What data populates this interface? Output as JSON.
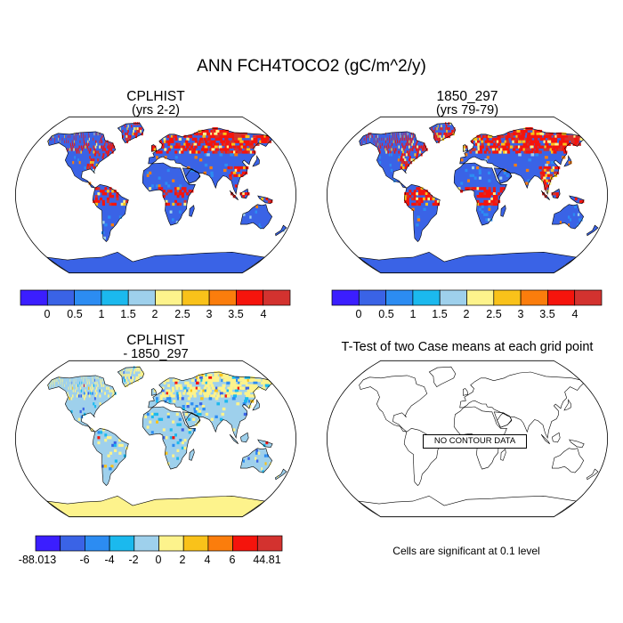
{
  "main_title": "ANN FCH4TOCO2 (gC/m^2/y)",
  "panels": {
    "case1": {
      "title": "CPLHIST",
      "subtitle": "(yrs 2-2)"
    },
    "case2": {
      "title": "1850_297",
      "subtitle": "(yrs 79-79)"
    },
    "diff": {
      "title": "CPLHIST",
      "subtitle": "- 1850_297"
    },
    "ttest": {
      "title": "T-Test of two Case means at each grid point",
      "nodata": "NO CONTOUR DATA",
      "note": "Cells are significant at 0.1 level"
    }
  },
  "colors": {
    "case_levels": [
      "#3b1eff",
      "#3a63e6",
      "#2c8cf2",
      "#1bb9ee",
      "#9ed0ec",
      "#fdf38c",
      "#f9c21a",
      "#fb7d0c",
      "#f5140c",
      "#d3322f"
    ],
    "diff_levels": [
      "#3b1eff",
      "#3a63e6",
      "#2c8cf2",
      "#1bb9ee",
      "#9ed0ec",
      "#fdf38c",
      "#f9c21a",
      "#fb7d0c",
      "#f5140c",
      "#d3322f"
    ]
  },
  "chart_data": [
    {
      "type": "heatmap",
      "title": "CPLHIST",
      "subtitle": "(yrs 2-2)",
      "colorbar_levels": [
        0,
        0.5,
        1,
        1.5,
        2,
        2.5,
        3,
        3.5,
        4
      ],
      "colorbar_labels": [
        "0",
        "0.5",
        "1",
        "1.5",
        "2",
        "2.5",
        "3",
        "3.5",
        "4"
      ]
    },
    {
      "type": "heatmap",
      "title": "1850_297",
      "subtitle": "(yrs 79-79)",
      "colorbar_levels": [
        0,
        0.5,
        1,
        1.5,
        2,
        2.5,
        3,
        3.5,
        4
      ],
      "colorbar_labels": [
        "0",
        "0.5",
        "1",
        "1.5",
        "2",
        "2.5",
        "3",
        "3.5",
        "4"
      ]
    },
    {
      "type": "heatmap",
      "title": "CPLHIST",
      "subtitle": "- 1850_297",
      "colorbar_levels": [
        -6,
        -4,
        -2,
        0,
        2,
        4,
        6
      ],
      "colorbar_min": -88.013,
      "colorbar_max": 44.81,
      "colorbar_labels": [
        "-88.013",
        "-6",
        "-4",
        "-2",
        "0",
        "2",
        "4",
        "6",
        "44.81"
      ]
    },
    {
      "type": "heatmap",
      "title": "T-Test of two Case means at each grid point",
      "annotation": "NO CONTOUR DATA",
      "note": "Cells are significant at 0.1 level"
    }
  ]
}
